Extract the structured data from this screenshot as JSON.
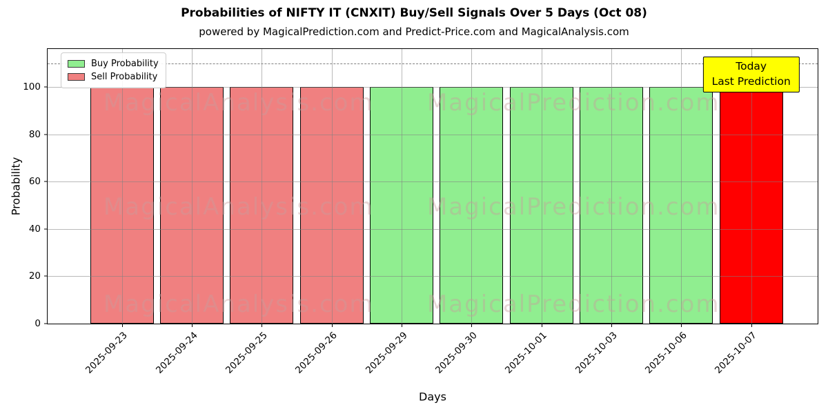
{
  "chart_data": {
    "type": "bar",
    "title": "Probabilities of NIFTY IT (CNXIT) Buy/Sell Signals Over 5 Days (Oct 08)",
    "subtitle": "powered by MagicalPrediction.com and Predict-Price.com and MagicalAnalysis.com",
    "xlabel": "Days",
    "ylabel": "Probability",
    "ylim": [
      0,
      116
    ],
    "yticks": [
      0,
      20,
      40,
      60,
      80,
      100
    ],
    "grid": true,
    "legend_position": "upper-left",
    "threshold_line": {
      "y": 110,
      "style": "dashed",
      "color": "#7f7f7f"
    },
    "categories": [
      "2025-09-23",
      "2025-09-24",
      "2025-09-25",
      "2025-09-26",
      "2025-09-29",
      "2025-09-30",
      "2025-10-01",
      "2025-10-03",
      "2025-10-06",
      "2025-10-07"
    ],
    "bars": [
      {
        "date": "2025-09-23",
        "value": 100,
        "signal": "sell",
        "color": "#f08080"
      },
      {
        "date": "2025-09-24",
        "value": 100,
        "signal": "sell",
        "color": "#f08080"
      },
      {
        "date": "2025-09-25",
        "value": 100,
        "signal": "sell",
        "color": "#f08080"
      },
      {
        "date": "2025-09-26",
        "value": 100,
        "signal": "sell",
        "color": "#f08080"
      },
      {
        "date": "2025-09-29",
        "value": 100,
        "signal": "buy",
        "color": "#90ee90"
      },
      {
        "date": "2025-09-30",
        "value": 100,
        "signal": "buy",
        "color": "#90ee90"
      },
      {
        "date": "2025-10-01",
        "value": 100,
        "signal": "buy",
        "color": "#90ee90"
      },
      {
        "date": "2025-10-03",
        "value": 100,
        "signal": "buy",
        "color": "#90ee90"
      },
      {
        "date": "2025-10-06",
        "value": 100,
        "signal": "buy",
        "color": "#90ee90"
      },
      {
        "date": "2025-10-07",
        "value": 100,
        "signal": "sell-today",
        "color": "#ff0000"
      }
    ],
    "series": [
      {
        "name": "Buy Probability",
        "color": "#90ee90",
        "values": [
          0,
          0,
          0,
          0,
          100,
          100,
          100,
          100,
          100,
          0
        ]
      },
      {
        "name": "Sell Probability",
        "color": "#f08080",
        "values": [
          100,
          100,
          100,
          100,
          0,
          0,
          0,
          0,
          0,
          100
        ]
      }
    ],
    "legend": {
      "entries": [
        {
          "label": "Buy Probability",
          "color": "#90ee90"
        },
        {
          "label": "Sell Probability",
          "color": "#f08080"
        }
      ]
    },
    "annotation": {
      "lines": [
        "Today",
        "Last Prediction"
      ],
      "bg_color": "#ffff00",
      "border_color": "#000000",
      "category_index": 9
    },
    "watermarks": [
      "MagicalAnalysis.com",
      "MagicalPrediction.com"
    ]
  },
  "colors": {
    "buy": "#90ee90",
    "sell": "#f08080",
    "today": "#ff0000",
    "grid": "#808080",
    "annotation_bg": "#ffff00"
  }
}
